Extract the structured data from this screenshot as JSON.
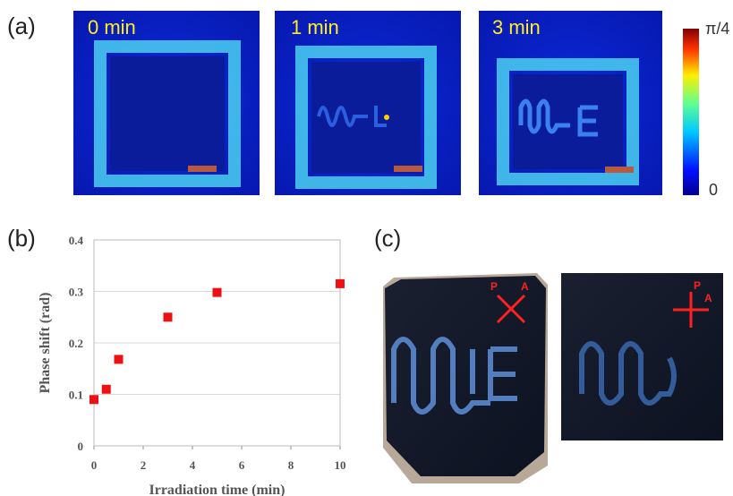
{
  "panel_a": {
    "label": "(a)",
    "images": [
      {
        "label": "0 min"
      },
      {
        "label": "1 min"
      },
      {
        "label": "3 min"
      }
    ],
    "colorbar": {
      "max_label": "π/4",
      "min_label": "0"
    }
  },
  "chart_data": {
    "type": "scatter",
    "panel_label": "(b)",
    "x_label": "Irradiation time (min)",
    "y_label": "Phase shift (rad)",
    "x": [
      0,
      0.5,
      1,
      3,
      5,
      10
    ],
    "values": [
      0.09,
      0.11,
      0.168,
      0.25,
      0.298,
      0.315
    ],
    "color": "#ee1111",
    "xlim": [
      0,
      10
    ],
    "xticks": [
      0,
      2,
      4,
      6,
      8,
      10
    ],
    "ylim": [
      0,
      0.4
    ],
    "yticks": [
      0,
      0.1,
      0.2,
      0.3,
      0.4
    ],
    "grid": true
  },
  "panel_c": {
    "label": "(c)",
    "images": [
      {
        "polarizer": "P",
        "analyzer": "A"
      },
      {
        "polarizer": "P",
        "analyzer": "A"
      }
    ]
  }
}
